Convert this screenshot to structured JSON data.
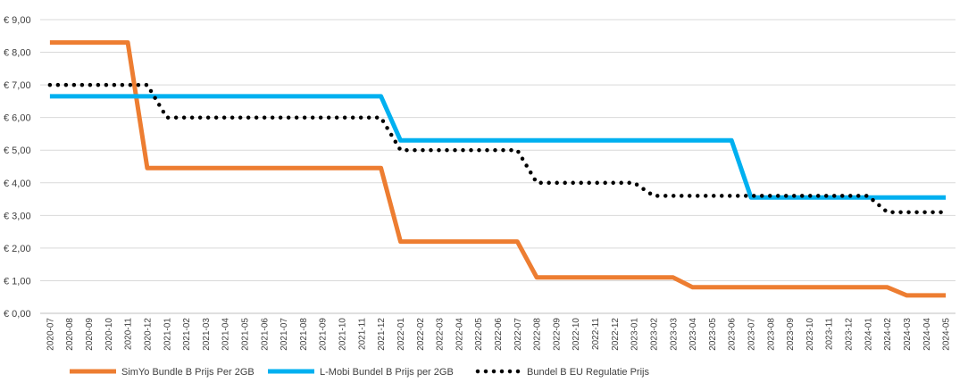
{
  "chart_data": {
    "type": "line",
    "title": "",
    "xlabel": "",
    "ylabel": "",
    "ylim": [
      0,
      9
    ],
    "grid": true,
    "legend_position": "bottom",
    "y_ticks": [
      "€ 0,00",
      "€ 1,00",
      "€ 2,00",
      "€ 3,00",
      "€ 4,00",
      "€ 5,00",
      "€ 6,00",
      "€ 7,00",
      "€ 8,00",
      "€ 9,00"
    ],
    "x": [
      "2020-07",
      "2020-08",
      "2020-09",
      "2020-10",
      "2020-11",
      "2020-12",
      "2021-01",
      "2021-02",
      "2021-03",
      "2021-04",
      "2021-05",
      "2021-06",
      "2021-07",
      "2021-08",
      "2021-09",
      "2021-10",
      "2021-11",
      "2021-12",
      "2022-01",
      "2022-02",
      "2022-03",
      "2022-04",
      "2022-05",
      "2022-06",
      "2022-07",
      "2022-08",
      "2022-09",
      "2022-10",
      "2022-11",
      "2022-12",
      "2023-01",
      "2023-02",
      "2023-03",
      "2023-04",
      "2023-05",
      "2023-06",
      "2023-07",
      "2023-08",
      "2023-09",
      "2023-10",
      "2023-11",
      "2023-12",
      "2024-01",
      "2024-02",
      "2024-03",
      "2024-04",
      "2024-05"
    ],
    "series": [
      {
        "name": "SimYo Bundle B Prijs Per 2GB",
        "color": "#ED7D31",
        "style": "solid",
        "values": [
          8.3,
          8.3,
          8.3,
          8.3,
          8.3,
          4.45,
          4.45,
          4.45,
          4.45,
          4.45,
          4.45,
          4.45,
          4.45,
          4.45,
          4.45,
          4.45,
          4.45,
          4.45,
          2.2,
          2.2,
          2.2,
          2.2,
          2.2,
          2.2,
          2.2,
          1.1,
          1.1,
          1.1,
          1.1,
          1.1,
          1.1,
          1.1,
          1.1,
          0.8,
          0.8,
          0.8,
          0.8,
          0.8,
          0.8,
          0.8,
          0.8,
          0.8,
          0.8,
          0.8,
          0.55,
          0.55,
          0.55
        ]
      },
      {
        "name": "L-Mobi Bundel B Prijs per 2GB",
        "color": "#00B0F0",
        "style": "solid",
        "values": [
          6.65,
          6.65,
          6.65,
          6.65,
          6.65,
          6.65,
          6.65,
          6.65,
          6.65,
          6.65,
          6.65,
          6.65,
          6.65,
          6.65,
          6.65,
          6.65,
          6.65,
          6.65,
          5.3,
          5.3,
          5.3,
          5.3,
          5.3,
          5.3,
          5.3,
          5.3,
          5.3,
          5.3,
          5.3,
          5.3,
          5.3,
          5.3,
          5.3,
          5.3,
          5.3,
          5.3,
          3.55,
          3.55,
          3.55,
          3.55,
          3.55,
          3.55,
          3.55,
          3.55,
          3.55,
          3.55,
          3.55
        ]
      },
      {
        "name": "Bundel B EU Regulatie Prijs",
        "color": "#000000",
        "style": "dotted",
        "values": [
          7.0,
          7.0,
          7.0,
          7.0,
          7.0,
          7.0,
          6.0,
          6.0,
          6.0,
          6.0,
          6.0,
          6.0,
          6.0,
          6.0,
          6.0,
          6.0,
          6.0,
          6.0,
          5.0,
          5.0,
          5.0,
          5.0,
          5.0,
          5.0,
          5.0,
          4.0,
          4.0,
          4.0,
          4.0,
          4.0,
          4.0,
          3.6,
          3.6,
          3.6,
          3.6,
          3.6,
          3.6,
          3.6,
          3.6,
          3.6,
          3.6,
          3.6,
          3.6,
          3.1,
          3.1,
          3.1,
          3.1
        ]
      }
    ]
  }
}
